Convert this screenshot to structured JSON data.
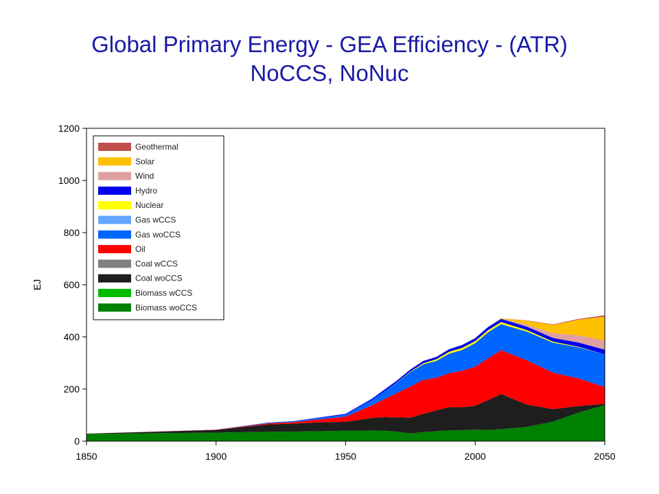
{
  "title_line1": "Global Primary Energy - GEA Efficiency - (ATR)",
  "title_line2": "NoCCS, NoNuc",
  "chart_data": {
    "type": "area",
    "stacked": true,
    "xlabel": "",
    "ylabel": "EJ",
    "xlim": [
      1850,
      2050
    ],
    "ylim": [
      0,
      1200
    ],
    "xticks": [
      1850,
      1900,
      1950,
      2000,
      2050
    ],
    "yticks": [
      0,
      200,
      400,
      600,
      800,
      1000,
      1200
    ],
    "legend_position": "top-left",
    "x": [
      1850,
      1900,
      1920,
      1930,
      1940,
      1950,
      1960,
      1965,
      1970,
      1975,
      1980,
      1985,
      1990,
      1995,
      2000,
      2005,
      2010,
      2020,
      2030,
      2040,
      2050
    ],
    "series": [
      {
        "name": "Biomass woCCS",
        "color": "#008000",
        "values": [
          28,
          33,
          36,
          37,
          38,
          40,
          41,
          40,
          36,
          30,
          35,
          38,
          41,
          42,
          44,
          43,
          46,
          55,
          75,
          110,
          138
        ]
      },
      {
        "name": "Biomass wCCS",
        "color": "#00bb00",
        "values": [
          0,
          0,
          0,
          0,
          0,
          0,
          0,
          0,
          0,
          0,
          0,
          0,
          0,
          0,
          0,
          0,
          0,
          0,
          0,
          0,
          0
        ]
      },
      {
        "name": "Coal woCCS",
        "color": "#1e1e1e",
        "values": [
          1,
          10,
          28,
          30,
          34,
          34,
          48,
          52,
          55,
          60,
          70,
          80,
          90,
          88,
          92,
          115,
          135,
          85,
          48,
          25,
          5
        ]
      },
      {
        "name": "Coal wCCS",
        "color": "#808080",
        "values": [
          0,
          0,
          0,
          0,
          0,
          0,
          0,
          0,
          0,
          0,
          0,
          0,
          0,
          0,
          0,
          0,
          0,
          0,
          0,
          0,
          0
        ]
      },
      {
        "name": "Oil",
        "color": "#ff0000",
        "values": [
          0,
          1,
          4,
          6,
          12,
          20,
          48,
          70,
          95,
          120,
          130,
          125,
          130,
          140,
          150,
          160,
          168,
          170,
          140,
          105,
          65
        ]
      },
      {
        "name": "Gas woCCS",
        "color": "#0066ff",
        "values": [
          0,
          0,
          2,
          3,
          5,
          8,
          20,
          30,
          40,
          55,
          60,
          65,
          75,
          80,
          90,
          100,
          100,
          110,
          115,
          120,
          125
        ]
      },
      {
        "name": "Gas wCCS",
        "color": "#66a6ff",
        "values": [
          0,
          0,
          0,
          0,
          0,
          0,
          0,
          0,
          0,
          0,
          0,
          0,
          0,
          0,
          0,
          0,
          0,
          0,
          0,
          0,
          0
        ]
      },
      {
        "name": "Nuclear",
        "color": "#ffff00",
        "values": [
          0,
          0,
          0,
          0,
          0,
          0,
          0,
          0,
          1,
          2,
          4,
          6,
          7,
          8,
          8,
          8,
          8,
          6,
          4,
          2,
          0
        ]
      },
      {
        "name": "Hydro",
        "color": "#0000ee",
        "values": [
          0,
          0,
          1,
          1,
          2,
          3,
          5,
          6,
          7,
          8,
          9,
          9,
          10,
          11,
          11,
          12,
          12,
          13,
          14,
          16,
          18
        ]
      },
      {
        "name": "Wind",
        "color": "#e0a0a0",
        "values": [
          0,
          0,
          0,
          0,
          0,
          0,
          0,
          0,
          0,
          0,
          0,
          0,
          0,
          0,
          0,
          0,
          1,
          8,
          18,
          28,
          35
        ]
      },
      {
        "name": "Solar",
        "color": "#ffc000",
        "values": [
          0,
          0,
          0,
          0,
          0,
          0,
          0,
          0,
          0,
          0,
          0,
          0,
          0,
          0,
          0,
          0,
          1,
          15,
          32,
          60,
          92
        ]
      },
      {
        "name": "Geothermal",
        "color": "#c0504d",
        "values": [
          0,
          0,
          0,
          0,
          0,
          0,
          0,
          0,
          0,
          0,
          0,
          0,
          0,
          0,
          0,
          0,
          0,
          1,
          2,
          3,
          5
        ]
      }
    ],
    "legend_order": [
      "Geothermal",
      "Solar",
      "Wind",
      "Hydro",
      "Nuclear",
      "Gas wCCS",
      "Gas woCCS",
      "Oil",
      "Coal wCCS",
      "Coal woCCS",
      "Biomass wCCS",
      "Biomass woCCS"
    ]
  }
}
